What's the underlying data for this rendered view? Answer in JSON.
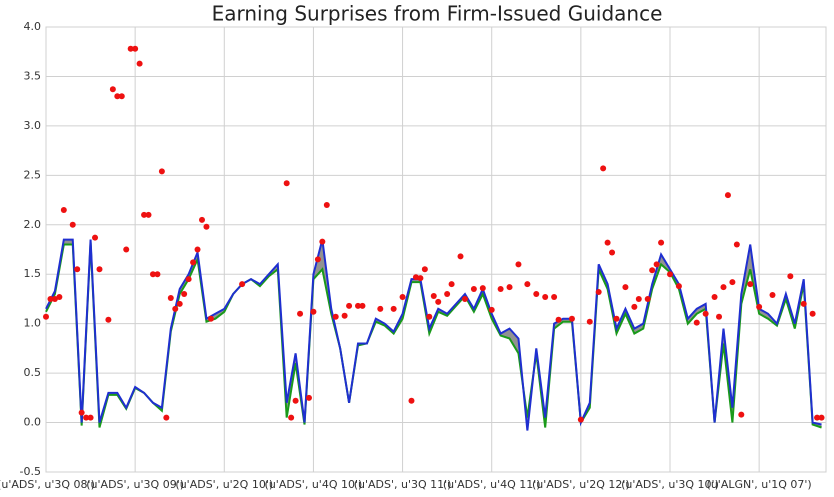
{
  "chart_data": {
    "type": "line",
    "title": "Earning Surprises from Firm-Issued Guidance",
    "x": [
      0,
      2,
      4,
      6,
      8,
      10,
      12,
      14,
      16,
      18,
      20,
      22,
      24,
      26,
      28,
      30,
      32,
      34,
      36,
      38,
      40,
      42,
      44,
      46,
      48,
      50,
      52,
      54,
      56,
      58,
      60,
      62,
      64,
      66,
      68,
      70,
      72,
      74,
      76,
      78,
      80,
      82,
      84,
      86,
      88,
      90,
      92,
      94,
      96,
      98,
      100,
      102,
      104,
      106,
      108,
      110,
      112,
      114,
      116,
      118,
      120,
      122,
      124,
      126,
      128,
      130,
      132,
      134,
      136,
      138,
      140,
      142,
      144,
      146,
      148,
      150,
      152,
      154,
      156,
      158,
      160,
      162,
      164,
      166,
      168,
      170,
      172,
      174
    ],
    "series": [
      {
        "color": "#1a9a1a",
        "values": [
          1.12,
          1.3,
          1.8,
          1.8,
          -0.03,
          1.82,
          -0.05,
          0.28,
          0.28,
          0.14,
          0.35,
          0.3,
          0.2,
          0.12,
          0.92,
          1.3,
          1.45,
          1.65,
          1.02,
          1.05,
          1.12,
          1.3,
          1.4,
          1.45,
          1.38,
          1.48,
          1.55,
          0.05,
          0.6,
          -0.02,
          1.45,
          1.55,
          1.1,
          0.75,
          0.2,
          0.78,
          0.8,
          1.02,
          0.98,
          0.9,
          1.05,
          1.42,
          1.42,
          0.9,
          1.12,
          1.08,
          1.18,
          1.28,
          1.12,
          1.3,
          1.05,
          0.88,
          0.85,
          0.7,
          0.05,
          0.7,
          -0.05,
          0.95,
          1.02,
          1.02,
          0.0,
          0.15,
          1.55,
          1.35,
          0.9,
          1.1,
          0.9,
          0.95,
          1.35,
          1.6,
          1.52,
          1.35,
          1.0,
          1.1,
          1.15,
          0.0,
          0.8,
          0.0,
          1.2,
          1.55,
          1.1,
          1.05,
          0.98,
          1.25,
          0.95,
          1.4,
          -0.02,
          -0.05
        ]
      },
      {
        "color": "#1f2fd0",
        "values": [
          1.15,
          1.33,
          1.85,
          1.85,
          0.0,
          1.85,
          0.0,
          0.3,
          0.3,
          0.15,
          0.36,
          0.3,
          0.2,
          0.15,
          0.95,
          1.35,
          1.5,
          1.72,
          1.05,
          1.1,
          1.15,
          1.3,
          1.4,
          1.45,
          1.4,
          1.5,
          1.6,
          0.2,
          0.7,
          0.0,
          1.5,
          1.85,
          1.15,
          0.75,
          0.2,
          0.8,
          0.8,
          1.05,
          1.0,
          0.92,
          1.1,
          1.45,
          1.45,
          0.95,
          1.15,
          1.1,
          1.2,
          1.3,
          1.15,
          1.35,
          1.1,
          0.9,
          0.95,
          0.85,
          -0.08,
          0.75,
          0.05,
          1.0,
          1.05,
          1.05,
          0.0,
          0.2,
          1.6,
          1.4,
          0.95,
          1.15,
          0.95,
          1.0,
          1.4,
          1.7,
          1.55,
          1.4,
          1.05,
          1.15,
          1.2,
          0.0,
          0.95,
          0.15,
          1.3,
          1.8,
          1.15,
          1.1,
          1.0,
          1.3,
          1.0,
          1.45,
          0.0,
          -0.02
        ]
      }
    ],
    "fill_color": "#777777",
    "scatter": {
      "color": "#ee1111",
      "x": [
        0,
        1,
        2,
        3,
        4,
        6,
        7,
        8,
        9,
        10,
        11,
        12,
        14,
        15,
        16,
        17,
        18,
        19,
        20,
        21,
        22,
        23,
        24,
        25,
        26,
        27,
        28,
        29,
        30,
        31,
        32,
        33,
        34,
        35,
        36,
        37,
        44,
        54,
        55,
        56,
        57,
        59,
        60,
        61,
        62,
        63,
        65,
        67,
        68,
        70,
        71,
        75,
        78,
        80,
        82,
        83,
        84,
        85,
        86,
        87,
        88,
        90,
        91,
        93,
        94,
        96,
        98,
        100,
        102,
        104,
        106,
        108,
        110,
        112,
        114,
        115,
        118,
        120,
        122,
        124,
        125,
        126,
        127,
        128,
        130,
        132,
        133,
        135,
        136,
        137,
        138,
        140,
        142,
        146,
        148,
        150,
        151,
        152,
        153,
        154,
        155,
        156,
        158,
        160,
        163,
        167,
        170,
        172,
        173,
        174
      ],
      "values": [
        1.07,
        1.25,
        1.25,
        1.27,
        2.15,
        2.0,
        1.55,
        0.1,
        0.05,
        0.05,
        1.87,
        1.55,
        1.04,
        3.37,
        3.3,
        3.3,
        1.75,
        3.78,
        3.78,
        3.63,
        2.1,
        2.1,
        1.5,
        1.5,
        2.54,
        0.05,
        1.26,
        1.15,
        1.2,
        1.3,
        1.45,
        1.62,
        1.75,
        2.05,
        1.98,
        1.05,
        1.4,
        2.42,
        0.05,
        0.22,
        1.1,
        0.25,
        1.12,
        1.65,
        1.83,
        2.2,
        1.07,
        1.08,
        1.18,
        1.18,
        1.18,
        1.15,
        1.15,
        1.27,
        0.22,
        1.47,
        1.46,
        1.55,
        1.07,
        1.28,
        1.22,
        1.3,
        1.4,
        1.68,
        1.25,
        1.35,
        1.36,
        1.14,
        1.35,
        1.37,
        1.6,
        1.4,
        1.3,
        1.27,
        1.27,
        1.04,
        1.05,
        0.03,
        1.02,
        1.32,
        2.57,
        1.82,
        1.72,
        1.05,
        1.37,
        1.17,
        1.25,
        1.25,
        1.54,
        1.6,
        1.82,
        1.5,
        1.38,
        1.01,
        1.1,
        1.27,
        1.07,
        1.37,
        2.3,
        1.42,
        1.8,
        0.08,
        1.4,
        1.17,
        1.29,
        1.48,
        1.2,
        1.1,
        0.05,
        0.05
      ]
    },
    "xlim": [
      0,
      175
    ],
    "xticks": [
      {
        "value": 0,
        "label": "(u'ADS', u'3Q 08')"
      },
      {
        "value": 20,
        "label": "(u'ADS', u'3Q 09')"
      },
      {
        "value": 40,
        "label": "(u'ADS', u'2Q 10')"
      },
      {
        "value": 60,
        "label": "(u'ADS', u'4Q 10')"
      },
      {
        "value": 80,
        "label": "(u'ADS', u'3Q 11')"
      },
      {
        "value": 100,
        "label": "(u'ADS', u'4Q 11')"
      },
      {
        "value": 120,
        "label": "(u'ADS', u'2Q 12')"
      },
      {
        "value": 140,
        "label": "(u'ADS', u'3Q 10')"
      },
      {
        "value": 160,
        "label": "(u'ALGN', u'1Q 07')"
      }
    ],
    "ylim": [
      -0.5,
      4.0
    ],
    "yticks": [
      -0.5,
      {
        "value": 0,
        "label": "0.0"
      },
      0.5,
      {
        "value": 1,
        "label": "1.0"
      },
      1.5,
      {
        "value": 2,
        "label": "2.0"
      },
      2.5,
      {
        "value": 3,
        "label": "3.0"
      },
      3.5,
      {
        "value": 4,
        "label": "4.0"
      }
    ],
    "grid": true
  }
}
